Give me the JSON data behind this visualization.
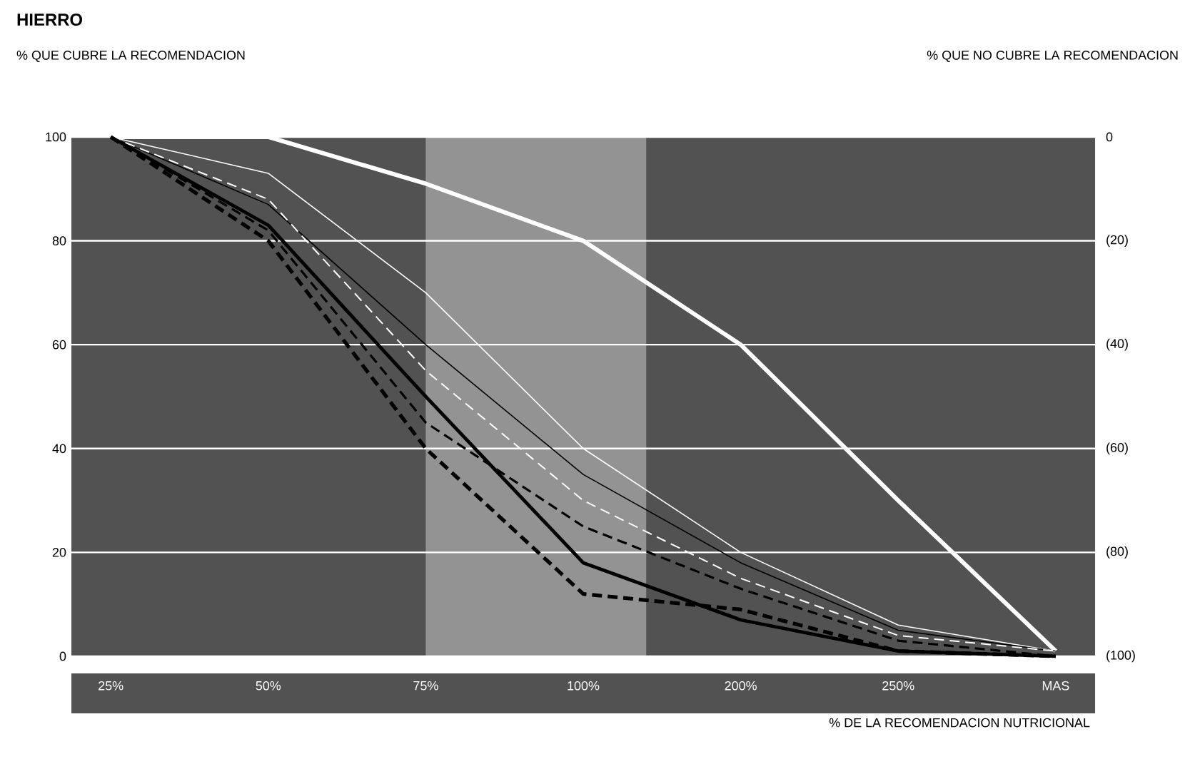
{
  "chart_data": {
    "type": "line",
    "title": "HIERRO",
    "annotations": [
      "% QUE CUBRE LA RECOMENDACION",
      "% QUE NO CUBRE LA RECOMENDACION"
    ],
    "xlabel": "% DE LA RECOMENDACION NUTRICIONAL",
    "categories": [
      "25%",
      "50%",
      "75%",
      "100%",
      "200%",
      "250%",
      "MAS"
    ],
    "ylim": [
      0,
      100
    ],
    "yticks": [
      0,
      20,
      40,
      60,
      80,
      100
    ],
    "y2lim": [
      100,
      0
    ],
    "y2ticks": [
      {
        "value": 0,
        "label": "0"
      },
      {
        "value": 20,
        "label": "(20)"
      },
      {
        "value": 40,
        "label": "(40)"
      },
      {
        "value": 60,
        "label": "(60)"
      },
      {
        "value": 80,
        "label": "(80)"
      },
      {
        "value": 100,
        "label": "(100)"
      }
    ],
    "grid": "y",
    "series": [
      {
        "color": "#ffffff",
        "line_style": "solid",
        "values": [
          100,
          100,
          91,
          80,
          60,
          30,
          1
        ]
      },
      {
        "color": "#ffffff",
        "line_style": "solid",
        "values": [
          100,
          93,
          70,
          40,
          20,
          6,
          1
        ]
      },
      {
        "color": "#000000",
        "line_style": "solid",
        "values": [
          100,
          87,
          60,
          35,
          18,
          5,
          1
        ]
      },
      {
        "color": "#ffffff",
        "line_style": "dashed",
        "values": [
          100,
          88,
          55,
          30,
          15,
          4,
          1
        ]
      },
      {
        "color": "#000000",
        "line_style": "dashed",
        "values": [
          100,
          82,
          45,
          25,
          13,
          3,
          0
        ]
      },
      {
        "color": "#000000",
        "line_style": "solid",
        "values": [
          100,
          83,
          50,
          18,
          7,
          1,
          0
        ]
      },
      {
        "color": "#000000",
        "line_style": "dashed",
        "values": [
          100,
          80,
          40,
          12,
          9,
          1,
          0
        ]
      }
    ]
  }
}
